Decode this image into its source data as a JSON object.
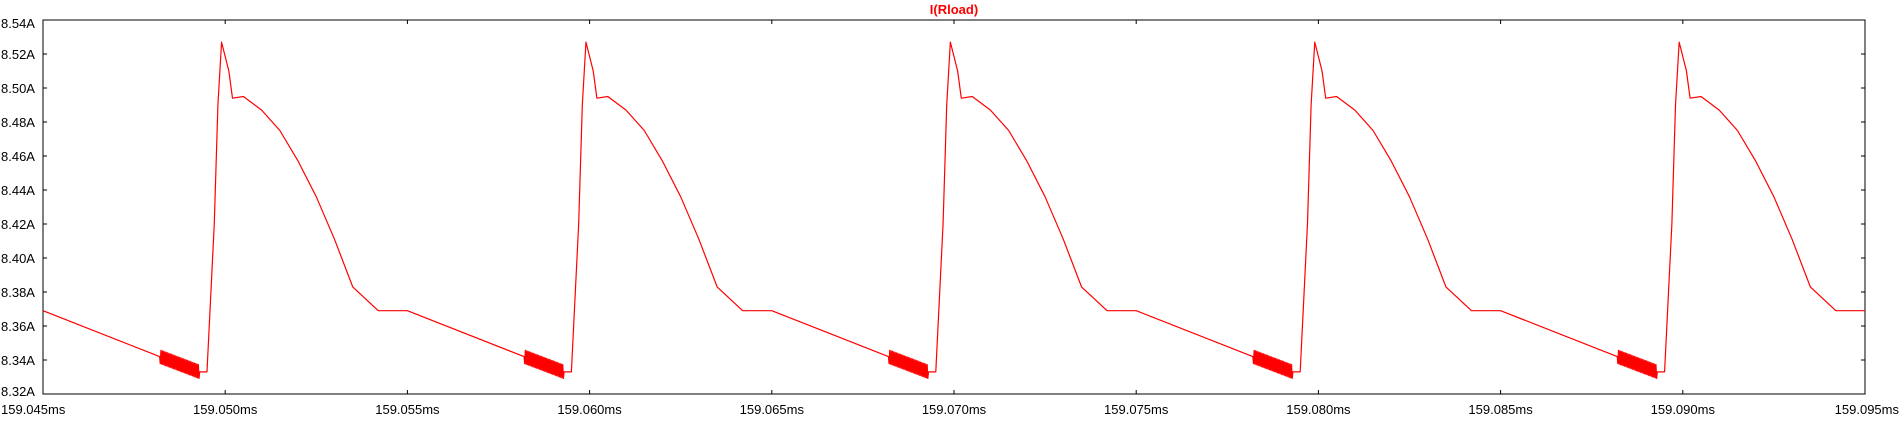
{
  "chart_data": {
    "type": "line",
    "title": "I(Rload)",
    "xlabel": "",
    "ylabel": "",
    "grid": false,
    "xlim": [
      159.045,
      159.095
    ],
    "ylim": [
      8.32,
      8.54
    ],
    "x_unit": "ms",
    "y_unit": "A",
    "x_ticks": [
      "159.045ms",
      "159.050ms",
      "159.055ms",
      "159.060ms",
      "159.065ms",
      "159.070ms",
      "159.075ms",
      "159.080ms",
      "159.085ms",
      "159.090ms",
      "159.095ms"
    ],
    "y_ticks": [
      "8.32A",
      "8.34A",
      "8.36A",
      "8.38A",
      "8.40A",
      "8.42A",
      "8.44A",
      "8.46A",
      "8.48A",
      "8.50A",
      "8.52A",
      "8.54A"
    ],
    "series": [
      {
        "name": "I(Rload)",
        "color": "#ff0000",
        "x": [
          159.045,
          159.0482,
          159.0493,
          159.0495,
          159.0497,
          159.0498,
          159.0499,
          159.0501,
          159.0502,
          159.0505,
          159.051,
          159.0515,
          159.052,
          159.0525,
          159.053,
          159.0535,
          159.0542
        ],
        "y": [
          8.369,
          8.342,
          8.333,
          8.333,
          8.42,
          8.49,
          8.527,
          8.51,
          8.494,
          8.495,
          8.487,
          8.475,
          8.457,
          8.436,
          8.411,
          8.383,
          8.369
        ],
        "period": 0.01,
        "ripple_segment": {
          "x_start": 159.0482,
          "x_end": 159.0493,
          "y_start": 8.342,
          "y_end": 8.333,
          "amplitude": 0.004
        }
      }
    ]
  }
}
